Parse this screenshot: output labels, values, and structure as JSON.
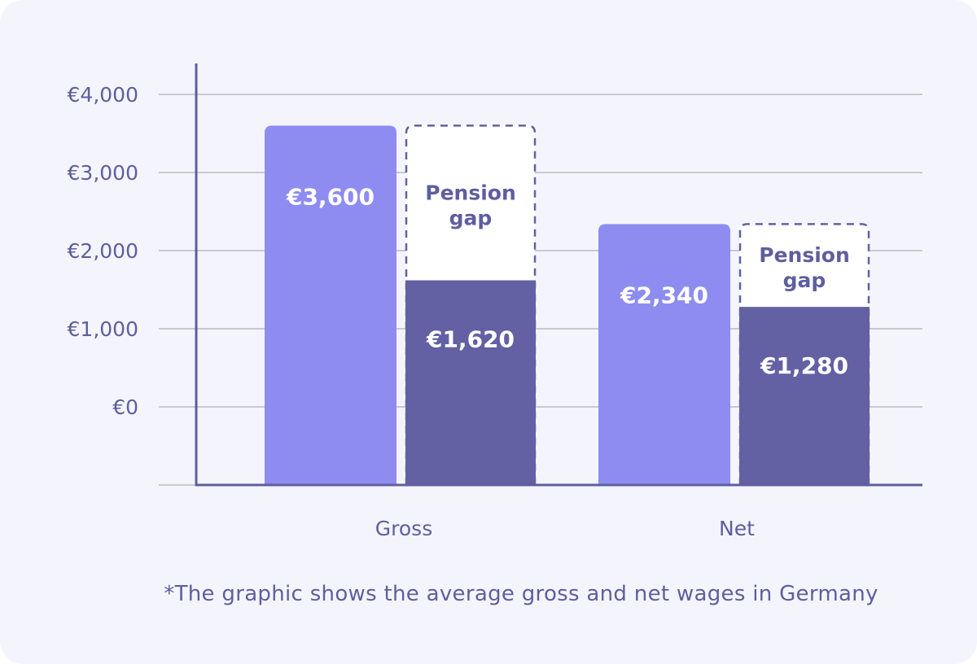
{
  "chart_data": {
    "type": "bar",
    "categories": [
      "Gross",
      "Net"
    ],
    "series": [
      {
        "values": [
          3600,
          2340
        ],
        "labels": [
          "€3,600",
          "€2,340"
        ]
      },
      {
        "values": [
          1620,
          1280
        ],
        "labels": [
          "€1,620",
          "€1,280"
        ]
      }
    ],
    "gap_label": "Pension gap",
    "gap_label_lines": [
      "Pension",
      "gap"
    ],
    "y_ticks": [
      {
        "value": 0,
        "label": "€0"
      },
      {
        "value": 1000,
        "label": "€1,000"
      },
      {
        "value": 2000,
        "label": "€2,000"
      },
      {
        "value": 3000,
        "label": "€3,000"
      },
      {
        "value": 4000,
        "label": "€4,000"
      }
    ],
    "ylim": [
      -1000,
      4000
    ],
    "grid": true,
    "colors": {
      "gross_bar": "#8e8cf0",
      "net_bar": "#6361a3",
      "axis": "#5e5e9e",
      "grid": "#c8c8d6",
      "text": "#5e5e9e"
    }
  },
  "footnote": "*The graphic shows the average gross and net wages in Germany"
}
